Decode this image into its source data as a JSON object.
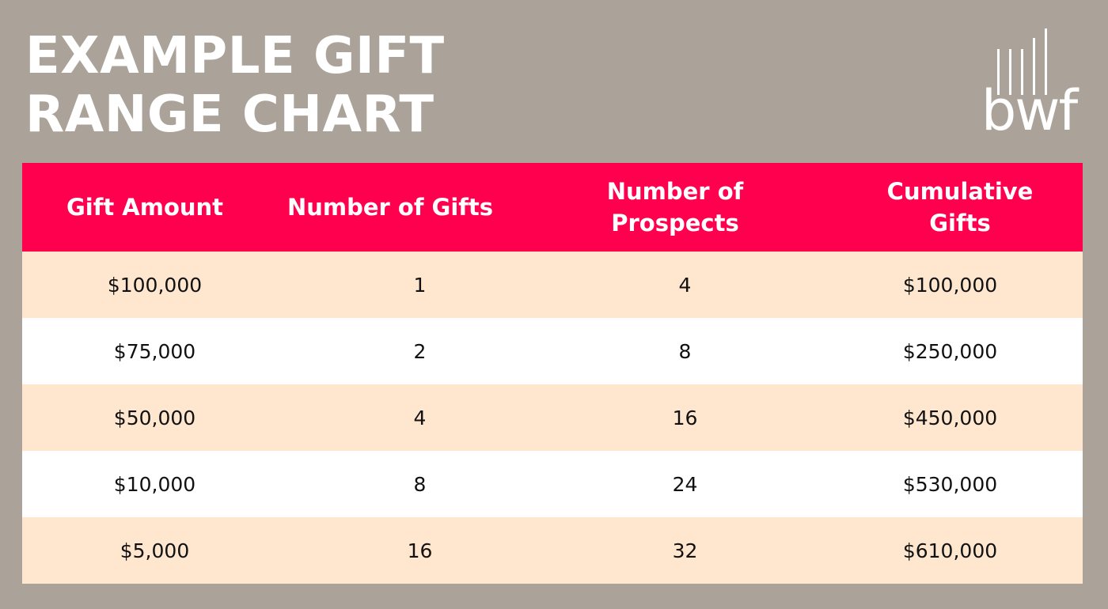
{
  "title_lines": [
    "EXAMPLE GIFT",
    "RANGE CHART"
  ],
  "logo": {
    "text": "bwf",
    "icon": "vertical-bars-icon"
  },
  "colors": {
    "background": "#aba39a",
    "header": "#ff004f",
    "row_alt": "#ffe6cf",
    "row": "#ffffff"
  },
  "chart_data": {
    "type": "table",
    "title": "EXAMPLE GIFT RANGE CHART",
    "columns": [
      "Gift Amount",
      "Number of Gifts",
      "Number of Prospects",
      "Cumulative Gifts"
    ],
    "rows": [
      [
        "$100,000",
        "1",
        "4",
        "$100,000"
      ],
      [
        "$75,000",
        "2",
        "8",
        "$250,000"
      ],
      [
        "$50,000",
        "4",
        "16",
        "$450,000"
      ],
      [
        "$10,000",
        "8",
        "24",
        "$530,000"
      ],
      [
        "$5,000",
        "16",
        "32",
        "$610,000"
      ]
    ]
  }
}
